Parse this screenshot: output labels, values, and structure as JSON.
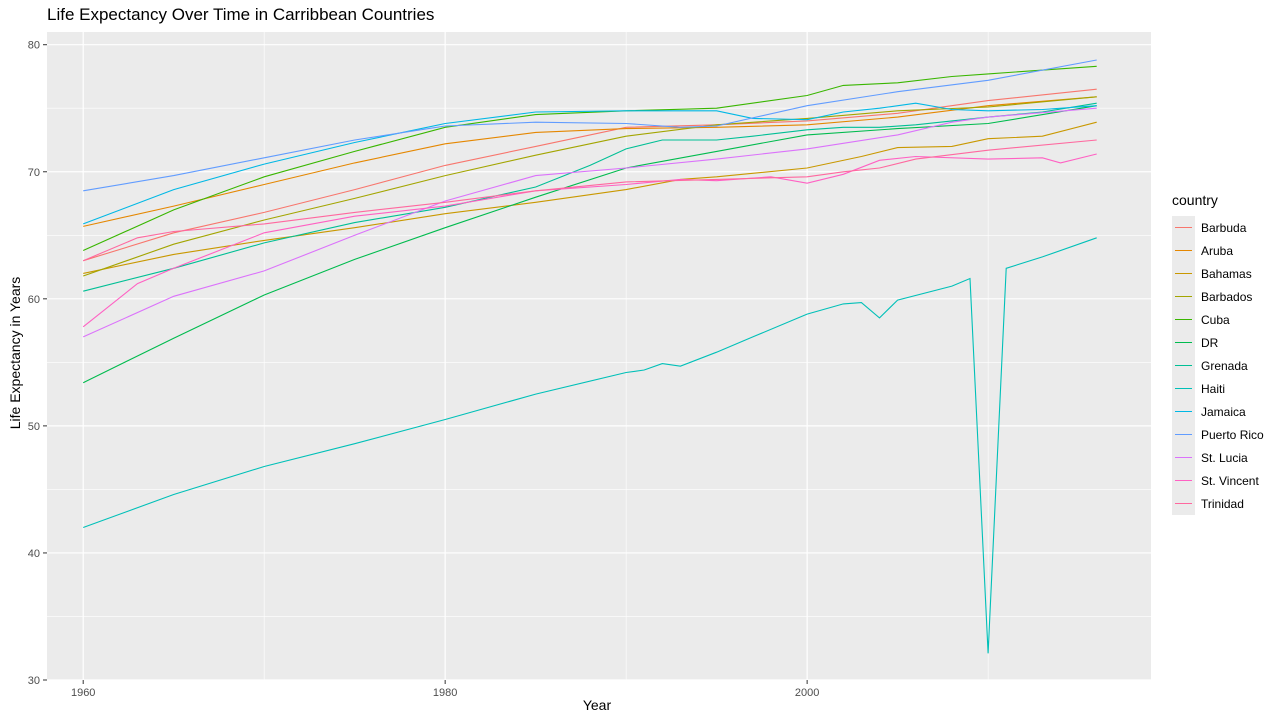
{
  "chart_data": {
    "type": "line",
    "title": "Life Expectancy Over Time in Carribbean Countries",
    "xlabel": "Year",
    "ylabel": "Life Expectancy in Years",
    "xlim": [
      1958,
      2019
    ],
    "ylim": [
      30,
      81
    ],
    "x_ticks": [
      1960,
      1980,
      2000
    ],
    "y_ticks": [
      30,
      40,
      50,
      60,
      70,
      80
    ],
    "grid": true,
    "legend": {
      "title": "country",
      "position": "right"
    },
    "series": [
      {
        "name": "Barbuda",
        "color": "#F8766D",
        "points": [
          [
            1960,
            63.0
          ],
          [
            1965,
            65.2
          ],
          [
            1970,
            66.8
          ],
          [
            1975,
            68.6
          ],
          [
            1980,
            70.5
          ],
          [
            1985,
            72.0
          ],
          [
            1990,
            73.5
          ],
          [
            1995,
            73.7
          ],
          [
            2000,
            74.0
          ],
          [
            2005,
            74.6
          ],
          [
            2010,
            75.6
          ],
          [
            2016,
            76.5
          ]
        ]
      },
      {
        "name": "Aruba",
        "color": "#E58700",
        "points": [
          [
            1960,
            65.7
          ],
          [
            1965,
            67.3
          ],
          [
            1970,
            69.0
          ],
          [
            1975,
            70.7
          ],
          [
            1980,
            72.2
          ],
          [
            1985,
            73.1
          ],
          [
            1990,
            73.4
          ],
          [
            1995,
            73.5
          ],
          [
            2000,
            73.7
          ],
          [
            2005,
            74.3
          ],
          [
            2010,
            75.2
          ],
          [
            2016,
            75.9
          ]
        ]
      },
      {
        "name": "Bahamas",
        "color": "#C99800",
        "points": [
          [
            1960,
            62.0
          ],
          [
            1965,
            63.5
          ],
          [
            1970,
            64.6
          ],
          [
            1975,
            65.6
          ],
          [
            1980,
            66.7
          ],
          [
            1985,
            67.6
          ],
          [
            1990,
            68.6
          ],
          [
            1993,
            69.4
          ],
          [
            1995,
            69.6
          ],
          [
            2000,
            70.3
          ],
          [
            2003,
            71.2
          ],
          [
            2005,
            71.9
          ],
          [
            2008,
            72.0
          ],
          [
            2010,
            72.6
          ],
          [
            2013,
            72.8
          ],
          [
            2016,
            73.9
          ]
        ]
      },
      {
        "name": "Barbados",
        "color": "#A3A500",
        "points": [
          [
            1960,
            61.8
          ],
          [
            1965,
            64.3
          ],
          [
            1970,
            66.2
          ],
          [
            1975,
            67.9
          ],
          [
            1980,
            69.7
          ],
          [
            1985,
            71.3
          ],
          [
            1990,
            72.8
          ],
          [
            1995,
            73.7
          ],
          [
            2000,
            74.2
          ],
          [
            2005,
            74.8
          ],
          [
            2010,
            75.1
          ],
          [
            2016,
            75.9
          ]
        ]
      },
      {
        "name": "Cuba",
        "color": "#39B600",
        "points": [
          [
            1960,
            63.8
          ],
          [
            1965,
            67.0
          ],
          [
            1970,
            69.6
          ],
          [
            1975,
            71.6
          ],
          [
            1980,
            73.5
          ],
          [
            1985,
            74.5
          ],
          [
            1990,
            74.8
          ],
          [
            1995,
            75.0
          ],
          [
            2000,
            76.0
          ],
          [
            2002,
            76.8
          ],
          [
            2005,
            77.0
          ],
          [
            2008,
            77.5
          ],
          [
            2010,
            77.7
          ],
          [
            2016,
            78.3
          ]
        ]
      },
      {
        "name": "DR",
        "color": "#00BB4E",
        "points": [
          [
            1960,
            53.4
          ],
          [
            1965,
            56.9
          ],
          [
            1970,
            60.3
          ],
          [
            1975,
            63.1
          ],
          [
            1980,
            65.6
          ],
          [
            1985,
            68.0
          ],
          [
            1990,
            70.3
          ],
          [
            1995,
            71.6
          ],
          [
            2000,
            72.9
          ],
          [
            2005,
            73.4
          ],
          [
            2010,
            73.8
          ],
          [
            2016,
            75.2
          ]
        ]
      },
      {
        "name": "Grenada",
        "color": "#00BF95",
        "points": [
          [
            1960,
            60.6
          ],
          [
            1965,
            62.4
          ],
          [
            1970,
            64.4
          ],
          [
            1975,
            66.0
          ],
          [
            1980,
            67.2
          ],
          [
            1985,
            68.8
          ],
          [
            1988,
            70.5
          ],
          [
            1990,
            71.8
          ],
          [
            1992,
            72.5
          ],
          [
            1995,
            72.5
          ],
          [
            1997,
            72.8
          ],
          [
            2000,
            73.3
          ],
          [
            2002,
            73.5
          ],
          [
            2004,
            73.5
          ],
          [
            2006,
            73.7
          ],
          [
            2008,
            74.0
          ],
          [
            2010,
            74.3
          ],
          [
            2013,
            74.7
          ],
          [
            2016,
            75.4
          ]
        ]
      },
      {
        "name": "Haiti",
        "color": "#00C0B8",
        "points": [
          [
            1960,
            42.0
          ],
          [
            1965,
            44.6
          ],
          [
            1970,
            46.8
          ],
          [
            1975,
            48.6
          ],
          [
            1980,
            50.5
          ],
          [
            1985,
            52.5
          ],
          [
            1990,
            54.2
          ],
          [
            1991,
            54.4
          ],
          [
            1992,
            54.9
          ],
          [
            1993,
            54.7
          ],
          [
            1995,
            55.8
          ],
          [
            1997,
            57.0
          ],
          [
            2000,
            58.8
          ],
          [
            2002,
            59.6
          ],
          [
            2003,
            59.7
          ],
          [
            2004,
            58.5
          ],
          [
            2005,
            59.9
          ],
          [
            2008,
            61.0
          ],
          [
            2009,
            61.6
          ],
          [
            2010,
            32.1
          ],
          [
            2011,
            62.4
          ],
          [
            2013,
            63.3
          ],
          [
            2016,
            64.8
          ]
        ]
      },
      {
        "name": "Jamaica",
        "color": "#00B8E5",
        "points": [
          [
            1960,
            65.9
          ],
          [
            1965,
            68.6
          ],
          [
            1970,
            70.6
          ],
          [
            1975,
            72.3
          ],
          [
            1980,
            73.8
          ],
          [
            1985,
            74.7
          ],
          [
            1990,
            74.8
          ],
          [
            1992,
            74.8
          ],
          [
            1995,
            74.8
          ],
          [
            1997,
            74.2
          ],
          [
            2000,
            74.1
          ],
          [
            2002,
            74.7
          ],
          [
            2004,
            75.0
          ],
          [
            2006,
            75.4
          ],
          [
            2008,
            74.9
          ],
          [
            2010,
            74.8
          ],
          [
            2013,
            74.9
          ],
          [
            2016,
            75.2
          ]
        ]
      },
      {
        "name": "Puerto Rico",
        "color": "#619CFF",
        "points": [
          [
            1960,
            68.5
          ],
          [
            1965,
            69.7
          ],
          [
            1970,
            71.1
          ],
          [
            1975,
            72.5
          ],
          [
            1980,
            73.6
          ],
          [
            1985,
            73.9
          ],
          [
            1990,
            73.8
          ],
          [
            1993,
            73.5
          ],
          [
            1995,
            73.6
          ],
          [
            2000,
            75.2
          ],
          [
            2005,
            76.3
          ],
          [
            2010,
            77.2
          ],
          [
            2016,
            78.8
          ]
        ]
      },
      {
        "name": "St. Lucia",
        "color": "#DB72FB",
        "points": [
          [
            1960,
            57.0
          ],
          [
            1965,
            60.2
          ],
          [
            1970,
            62.2
          ],
          [
            1975,
            65.0
          ],
          [
            1980,
            67.7
          ],
          [
            1985,
            69.7
          ],
          [
            1990,
            70.3
          ],
          [
            1995,
            71.0
          ],
          [
            2000,
            71.8
          ],
          [
            2005,
            72.9
          ],
          [
            2008,
            73.9
          ],
          [
            2010,
            74.3
          ],
          [
            2016,
            75.0
          ]
        ]
      },
      {
        "name": "St. Vincent",
        "color": "#FF61C3",
        "points": [
          [
            1960,
            57.8
          ],
          [
            1963,
            61.2
          ],
          [
            1965,
            62.4
          ],
          [
            1970,
            65.2
          ],
          [
            1975,
            66.5
          ],
          [
            1980,
            67.3
          ],
          [
            1985,
            68.5
          ],
          [
            1990,
            69.0
          ],
          [
            1993,
            69.4
          ],
          [
            1995,
            69.3
          ],
          [
            1998,
            69.6
          ],
          [
            2000,
            69.1
          ],
          [
            2002,
            69.8
          ],
          [
            2004,
            70.9
          ],
          [
            2006,
            71.2
          ],
          [
            2010,
            71.0
          ],
          [
            2013,
            71.1
          ],
          [
            2014,
            70.7
          ],
          [
            2016,
            71.4
          ]
        ]
      },
      {
        "name": "Trinidad",
        "color": "#FF689F",
        "points": [
          [
            1960,
            63.0
          ],
          [
            1963,
            64.8
          ],
          [
            1965,
            65.3
          ],
          [
            1970,
            65.9
          ],
          [
            1975,
            66.8
          ],
          [
            1980,
            67.6
          ],
          [
            1985,
            68.5
          ],
          [
            1990,
            69.2
          ],
          [
            1995,
            69.4
          ],
          [
            2000,
            69.6
          ],
          [
            2002,
            70.0
          ],
          [
            2004,
            70.3
          ],
          [
            2006,
            71.0
          ],
          [
            2010,
            71.7
          ],
          [
            2016,
            72.5
          ]
        ]
      }
    ]
  }
}
